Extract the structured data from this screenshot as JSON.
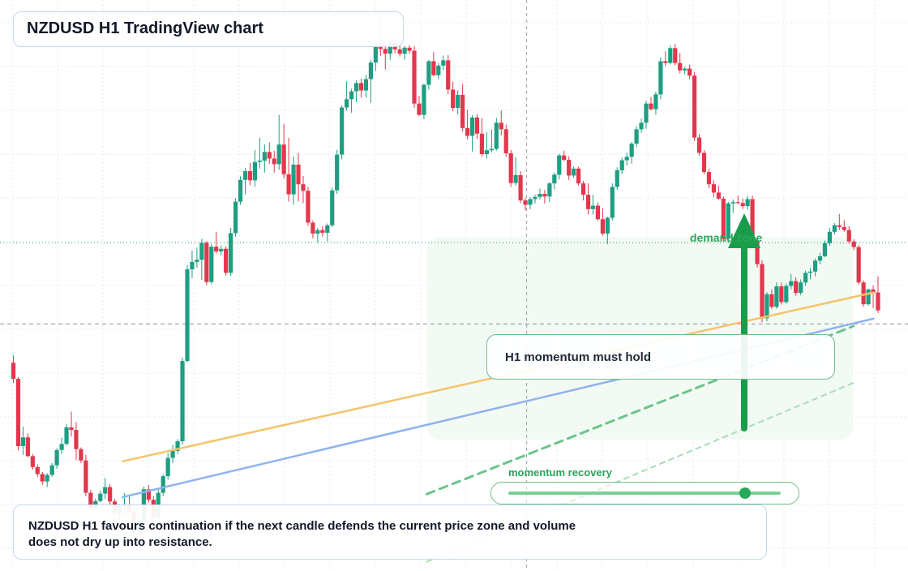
{
  "title": "NZDUSD H1 TradingView chart",
  "note": {
    "line1": "NZDUSD H1 favours continuation if the next candle defends the current price zone and volume",
    "line2": "does not dry up into resistance."
  },
  "callout": "H1 momentum must hold",
  "zone_label": "demand zone",
  "momentum": {
    "label": "momentum recovery",
    "value": 0.87
  },
  "colors": {
    "up": "#1e9e82",
    "down": "#e2374c",
    "orange_line": "#f4c46a",
    "blue_line": "#8fb2ee",
    "green_dash": "#6cc48a",
    "arrow": "#1b9c4a"
  },
  "chart_data": {
    "type": "candlestick",
    "timeframe": "H1",
    "symbol": "NZDUSD",
    "price_range_relative": [
      0,
      100
    ],
    "ohlc": [
      [
        33.6,
        35.3,
        29.0,
        29.9
      ],
      [
        29.9,
        30.3,
        13.5,
        14.5
      ],
      [
        14.5,
        19.0,
        12.5,
        16.5
      ],
      [
        16.5,
        17.4,
        11.9,
        12.2
      ],
      [
        12.2,
        12.7,
        9.1,
        9.7
      ],
      [
        9.7,
        10.3,
        7.5,
        8.1
      ],
      [
        8.1,
        8.6,
        5.6,
        6.4
      ],
      [
        6.4,
        8.3,
        5.1,
        7.9
      ],
      [
        7.9,
        10.6,
        7.5,
        10.1
      ],
      [
        10.1,
        14.0,
        9.3,
        13.6
      ],
      [
        13.6,
        16.4,
        12.7,
        15.0
      ],
      [
        15.0,
        19.6,
        14.6,
        18.8
      ],
      [
        18.8,
        22.4,
        16.7,
        18.2
      ],
      [
        18.2,
        20.0,
        11.3,
        13.8
      ],
      [
        13.8,
        14.2,
        10.6,
        11.2
      ],
      [
        11.2,
        12.5,
        3.0,
        3.8
      ],
      [
        3.8,
        4.5,
        -0.2,
        0.3
      ],
      [
        0.3,
        2.5,
        -1.3,
        1.9
      ],
      [
        1.9,
        4.3,
        1.6,
        3.6
      ],
      [
        3.6,
        7.2,
        2.3,
        5.1
      ],
      [
        5.1,
        5.8,
        0.8,
        1.8
      ],
      [
        1.8,
        2.4,
        -1.4,
        -0.9
      ],
      [
        -0.9,
        1.2,
        -2.6,
        0.7
      ],
      [
        0.7,
        3.7,
        -1.5,
        1.0
      ],
      [
        1.0,
        2.9,
        -1.5,
        -0.6
      ],
      [
        -0.6,
        0.3,
        -6.0,
        -5.3
      ],
      [
        -5.3,
        -1.8,
        -6.0,
        -2.5
      ],
      [
        -2.5,
        5.2,
        -3.3,
        4.6
      ],
      [
        4.6,
        5.6,
        1.6,
        2.2
      ],
      [
        2.2,
        3.0,
        -3.5,
        -2.0
      ],
      [
        -2.0,
        4.6,
        -2.8,
        3.8
      ],
      [
        3.8,
        8.0,
        3.0,
        7.6
      ],
      [
        7.6,
        12.9,
        6.8,
        11.8
      ],
      [
        11.8,
        14.8,
        10.6,
        13.4
      ],
      [
        13.4,
        16.1,
        12.7,
        15.6
      ],
      [
        15.6,
        34.8,
        14.8,
        34.0
      ],
      [
        34.0,
        56.0,
        33.7,
        55.0
      ],
      [
        55.0,
        59.3,
        53.0,
        56.7
      ],
      [
        56.7,
        60.0,
        55.4,
        57.2
      ],
      [
        57.2,
        62.0,
        52.6,
        61.1
      ],
      [
        61.1,
        61.5,
        51.4,
        52.1
      ],
      [
        52.1,
        60.8,
        51.6,
        60.2
      ],
      [
        60.2,
        63.6,
        58.6,
        59.1
      ],
      [
        59.1,
        60.5,
        58.2,
        59.7
      ],
      [
        59.7,
        60.3,
        53.5,
        54.2
      ],
      [
        54.2,
        64.5,
        53.5,
        63.3
      ],
      [
        63.3,
        71.3,
        62.5,
        70.5
      ],
      [
        70.5,
        76.3,
        69.8,
        75.5
      ],
      [
        75.5,
        78.2,
        72.2,
        77.5
      ],
      [
        77.5,
        79.4,
        74.3,
        75.4
      ],
      [
        75.4,
        82.4,
        73.9,
        79.6
      ],
      [
        79.6,
        85.2,
        78.1,
        79.9
      ],
      [
        79.9,
        83.6,
        77.2,
        81.9
      ],
      [
        81.9,
        84.1,
        79.2,
        80.4
      ],
      [
        80.4,
        82.2,
        77.2,
        79.1
      ],
      [
        79.1,
        90.4,
        77.8,
        83.6
      ],
      [
        83.6,
        88.3,
        75.8,
        76.8
      ],
      [
        76.8,
        85.1,
        70.5,
        72.2
      ],
      [
        72.2,
        80.9,
        69.8,
        79.0
      ],
      [
        79.0,
        81.7,
        70.6,
        74.5
      ],
      [
        74.5,
        76.4,
        70.2,
        73.0
      ],
      [
        73.0,
        73.9,
        65.0,
        65.7
      ],
      [
        65.7,
        66.2,
        62.1,
        63.2
      ],
      [
        63.2,
        64.5,
        61.1,
        64.0
      ],
      [
        64.0,
        64.9,
        62.5,
        63.4
      ],
      [
        63.4,
        65.5,
        61.4,
        65.1
      ],
      [
        65.1,
        73.7,
        64.7,
        73.1
      ],
      [
        73.1,
        82.4,
        72.3,
        81.3
      ],
      [
        81.3,
        92.6,
        80.2,
        92.1
      ],
      [
        92.1,
        98.1,
        91.4,
        94.0
      ],
      [
        94.0,
        96.4,
        90.9,
        95.8
      ],
      [
        95.8,
        98.3,
        93.3,
        97.7
      ],
      [
        97.7,
        98.7,
        94.4,
        96.0
      ],
      [
        96.0,
        99.6,
        94.4,
        98.6
      ],
      [
        98.6,
        103.0,
        93.2,
        102.4
      ],
      [
        102.4,
        107.5,
        100.5,
        106.1
      ],
      [
        106.1,
        112.9,
        103.9,
        105.5
      ],
      [
        105.5,
        106.2,
        100.8,
        104.4
      ],
      [
        104.4,
        108.3,
        103.0,
        106.9
      ],
      [
        106.9,
        108.4,
        104.5,
        105.4
      ],
      [
        105.4,
        106.3,
        103.8,
        104.4
      ],
      [
        104.4,
        106.2,
        103.1,
        105.8
      ],
      [
        105.8,
        106.4,
        104.4,
        105.1
      ],
      [
        105.1,
        106.1,
        92.0,
        93.0
      ],
      [
        93.0,
        94.8,
        90.1,
        90.4
      ],
      [
        90.4,
        97.6,
        89.4,
        97.3
      ],
      [
        97.3,
        103.0,
        96.2,
        102.7
      ],
      [
        102.7,
        104.8,
        99.2,
        99.5
      ],
      [
        99.5,
        102.3,
        98.6,
        101.7
      ],
      [
        101.7,
        104.0,
        100.7,
        102.9
      ],
      [
        102.9,
        104.1,
        95.1,
        96.2
      ],
      [
        96.2,
        98.0,
        91.2,
        92.0
      ],
      [
        92.0,
        96.0,
        90.5,
        95.0
      ],
      [
        95.0,
        97.5,
        86.6,
        87.4
      ],
      [
        87.4,
        91.6,
        84.8,
        85.6
      ],
      [
        85.6,
        90.3,
        82.0,
        89.8
      ],
      [
        89.8,
        90.5,
        84.9,
        86.1
      ],
      [
        86.1,
        89.7,
        80.8,
        81.4
      ],
      [
        81.4,
        86.4,
        80.4,
        82.3
      ],
      [
        82.3,
        87.1,
        81.9,
        82.6
      ],
      [
        82.6,
        89.7,
        82.2,
        88.6
      ],
      [
        88.6,
        91.4,
        85.7,
        87.1
      ],
      [
        87.1,
        88.2,
        80.8,
        81.6
      ],
      [
        81.6,
        82.4,
        73.9,
        74.8
      ],
      [
        74.8,
        80.7,
        74.2,
        76.6
      ],
      [
        76.6,
        77.5,
        70.2,
        70.8
      ],
      [
        70.8,
        71.4,
        68.5,
        69.8
      ],
      [
        69.8,
        71.6,
        68.8,
        71.1
      ],
      [
        71.1,
        72.1,
        70.1,
        71.6
      ],
      [
        71.6,
        73.5,
        71.0,
        72.3
      ],
      [
        72.3,
        73.2,
        70.1,
        71.7
      ],
      [
        71.7,
        75.0,
        70.4,
        74.7
      ],
      [
        74.7,
        77.2,
        73.3,
        76.7
      ],
      [
        76.7,
        81.5,
        75.6,
        81.1
      ],
      [
        81.1,
        82.2,
        79.8,
        80.1
      ],
      [
        80.1,
        80.9,
        75.5,
        76.5
      ],
      [
        76.5,
        78.6,
        76.0,
        78.1
      ],
      [
        78.1,
        78.5,
        74.2,
        74.7
      ],
      [
        74.7,
        75.3,
        70.8,
        72.1
      ],
      [
        72.1,
        74.7,
        67.6,
        68.8
      ],
      [
        68.8,
        72.1,
        67.6,
        69.6
      ],
      [
        69.6,
        70.3,
        66.1,
        66.5
      ],
      [
        66.5,
        69.0,
        62.7,
        63.2
      ],
      [
        63.2,
        67.1,
        60.8,
        66.8
      ],
      [
        66.8,
        74.7,
        66.2,
        73.9
      ],
      [
        73.9,
        78.4,
        73.2,
        77.7
      ],
      [
        77.7,
        80.6,
        76.9,
        80.0
      ],
      [
        80.0,
        81.7,
        78.8,
        80.8
      ],
      [
        80.8,
        84.2,
        79.2,
        83.8
      ],
      [
        83.8,
        87.8,
        83.0,
        87.1
      ],
      [
        87.1,
        89.6,
        86.3,
        88.6
      ],
      [
        88.6,
        93.7,
        87.2,
        93.0
      ],
      [
        93.0,
        94.5,
        91.4,
        91.7
      ],
      [
        91.7,
        95.7,
        90.4,
        95.1
      ],
      [
        95.1,
        103.6,
        94.0,
        102.7
      ],
      [
        102.7,
        105.0,
        101.6,
        102.3
      ],
      [
        102.3,
        106.3,
        102.0,
        105.7
      ],
      [
        105.7,
        106.7,
        101.8,
        102.3
      ],
      [
        102.3,
        104.6,
        99.9,
        100.6
      ],
      [
        100.6,
        101.4,
        99.7,
        101.0
      ],
      [
        101.0,
        101.9,
        98.6,
        99.4
      ],
      [
        99.4,
        100.2,
        84.4,
        85.2
      ],
      [
        85.2,
        86.0,
        81.1,
        81.7
      ],
      [
        81.7,
        82.3,
        76.8,
        77.3
      ],
      [
        77.3,
        78.1,
        73.6,
        74.5
      ],
      [
        74.5,
        75.4,
        71.6,
        72.6
      ],
      [
        72.6,
        74.1,
        70.9,
        71.2
      ],
      [
        71.2,
        71.7,
        61.3,
        62.0
      ],
      [
        62.0,
        70.5,
        61.0,
        70.1
      ],
      [
        70.1,
        71.0,
        67.9,
        70.4
      ],
      [
        70.4,
        71.9,
        69.9,
        70.2
      ],
      [
        70.2,
        71.2,
        68.8,
        69.5
      ],
      [
        69.5,
        71.9,
        68.7,
        71.1
      ],
      [
        71.1,
        71.9,
        61.0,
        61.6
      ],
      [
        61.6,
        62.3,
        55.4,
        56.2
      ],
      [
        56.2,
        57.1,
        42.9,
        43.8
      ],
      [
        43.8,
        49.8,
        43.1,
        49.3
      ],
      [
        49.3,
        50.4,
        45.9,
        46.4
      ],
      [
        46.4,
        52.0,
        46.0,
        51.1
      ],
      [
        51.1,
        52.0,
        46.9,
        47.5
      ],
      [
        47.5,
        51.8,
        47.1,
        51.2
      ],
      [
        51.2,
        53.9,
        50.4,
        52.3
      ],
      [
        52.3,
        53.2,
        49.0,
        49.6
      ],
      [
        49.6,
        52.7,
        49.1,
        52.0
      ],
      [
        52.0,
        54.7,
        51.2,
        54.2
      ],
      [
        54.2,
        55.3,
        52.7,
        54.5
      ],
      [
        54.5,
        57.5,
        53.4,
        57.0
      ],
      [
        57.0,
        58.8,
        56.2,
        58.0
      ],
      [
        58.0,
        61.6,
        57.8,
        61.0
      ],
      [
        61.0,
        64.5,
        60.4,
        63.6
      ],
      [
        63.6,
        65.6,
        63.0,
        65.1
      ],
      [
        65.1,
        67.7,
        64.0,
        64.7
      ],
      [
        64.7,
        66.3,
        63.6,
        64.0
      ],
      [
        64.0,
        64.9,
        60.9,
        61.4
      ],
      [
        61.4,
        61.9,
        59.4,
        60.1
      ],
      [
        60.1,
        60.6,
        51.5,
        52.0
      ],
      [
        52.0,
        52.5,
        46.4,
        47.0
      ],
      [
        47.0,
        50.6,
        46.7,
        50.4
      ],
      [
        50.4,
        51.3,
        46.1,
        49.7
      ],
      [
        49.7,
        53.4,
        45.0,
        45.6
      ]
    ],
    "lines": [
      {
        "name": "",
        "color": "#f4c46a",
        "x": [
          0.135,
          0.962
        ],
        "y": [
          11.0,
          49.7
        ]
      },
      {
        "name": "",
        "color": "#8fb2ee",
        "x": [
          0.135,
          0.962
        ],
        "y": [
          2.8,
          43.7
        ]
      },
      {
        "name": "",
        "color": "#6cc48a",
        "dashed": true,
        "x": [
          0.47,
          0.94
        ],
        "y": [
          3.5,
          42.0
        ]
      },
      {
        "name": "",
        "color": "#a8dcb9",
        "dashed": true,
        "x": [
          0.47,
          0.94
        ],
        "y": [
          -12.0,
          29.0
        ]
      }
    ],
    "markers": {
      "last_price_level": 61.1,
      "crosshair_level": 42.5,
      "crosshair_x": 0.58
    }
  }
}
